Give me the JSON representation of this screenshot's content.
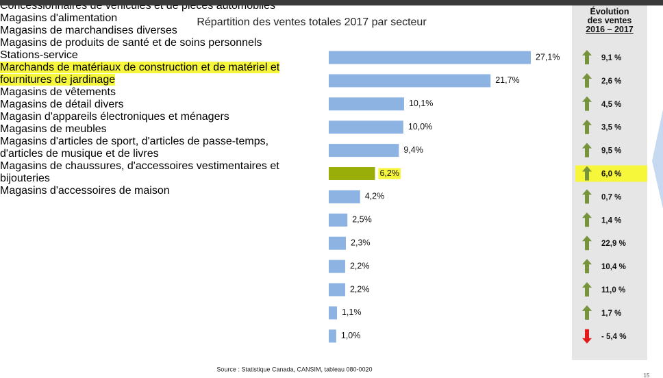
{
  "chart_data": {
    "type": "bar",
    "orientation": "horizontal",
    "title": "Répartition des ventes totales 2017 par secteur",
    "categories": [
      "Concessionnaires de véhicules et de pièces automobiles",
      "Magasins d'alimentation",
      "Magasins de marchandises diverses",
      "Magasins de produits de santé et de soins personnels",
      "Stations-service",
      "Marchands de matériaux de construction et de matériel et fournitures de jardinage",
      "Magasins de vêtements",
      "Magasins de détail divers",
      "Magasin d'appareils électroniques et ménagers",
      "Magasins de meubles",
      "Magasins d'articles de sport, d'articles de passe-temps, d'articles de musique et de livres",
      "Magasins de chaussures, d'accessoires vestimentaires et bijouteries",
      "Magasins d'accessoires de maison"
    ],
    "values": [
      27.1,
      21.7,
      10.1,
      10.0,
      9.4,
      6.2,
      4.2,
      2.5,
      2.3,
      2.2,
      2.2,
      1.1,
      1.0
    ],
    "value_labels": [
      "27,1%",
      "21,7%",
      "10,1%",
      "10,0%",
      "9,4%",
      "6,2%",
      "4,2%",
      "2,5%",
      "2,3%",
      "2,2%",
      "2,2%",
      "1,1%",
      "1,0%"
    ],
    "colors": [
      "#8db3e2",
      "#8db3e2",
      "#8db3e2",
      "#8db3e2",
      "#8db3e2",
      "#9aae0a",
      "#8db3e2",
      "#8db3e2",
      "#8db3e2",
      "#8db3e2",
      "#8db3e2",
      "#8db3e2",
      "#8db3e2"
    ],
    "highlights": [
      false,
      false,
      false,
      false,
      false,
      true,
      false,
      false,
      false,
      false,
      false,
      false,
      false
    ],
    "highlight_color": "#f6f63a",
    "evolution": {
      "title_lines": [
        "Évolution",
        "des ventes",
        "2016 – 2017"
      ],
      "values": [
        9.1,
        2.6,
        4.5,
        3.5,
        9.5,
        6.0,
        0.7,
        1.4,
        22.9,
        10.4,
        11.0,
        1.7,
        -5.4
      ],
      "value_labels": [
        "9,1 %",
        "2,6 %",
        "4,5 %",
        "3,5 %",
        "9,5 %",
        "6,0 %",
        "0,7 %",
        "1,4 %",
        "22,9 %",
        "10,4 %",
        "11,0 %",
        "1,7 %",
        "- 5,4 %"
      ],
      "up_color": "#77933c",
      "down_color": "#e31a1a"
    },
    "source": "Source : Statistique Canada, CANSIM, tableau 080-0020",
    "page_number": "15"
  }
}
